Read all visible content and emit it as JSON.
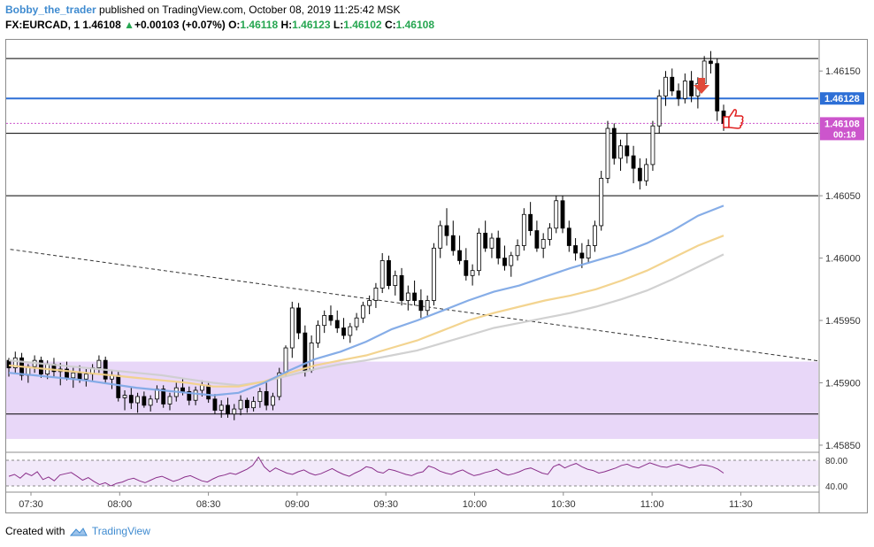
{
  "header": {
    "author": "Bobby_the_trader",
    "published_text": "published on TradingView.com, October 08, 2019 11:25:42 MSK",
    "symbol": "FX:EURCAD, 1",
    "last": "1.46108",
    "change_arrow": "▲",
    "change": "+0.00103 (+0.07%)",
    "o_label": "O:",
    "o_value": "1.46118",
    "h_label": "H:",
    "h_value": "1.46123",
    "l_label": "L:",
    "l_value": "1.46102",
    "c_label": "C:",
    "c_value": "1.46108"
  },
  "footer": {
    "created_with": "Created with",
    "brand": "TradingView"
  },
  "colors": {
    "up": "#000000",
    "down": "#000000",
    "body_up": "#ffffff",
    "body_down": "#000000",
    "ma_fast": "#7fa9e6",
    "ma_mid": "#f2d28a",
    "ma_slow": "#cfcfcf",
    "support_zone": "#e6d3f7",
    "level_line": "#2d6fd6",
    "price_tag": "#cc55cc",
    "rsi_line": "#8a2f8a",
    "rsi_band": "#f2e9fa",
    "trend_line": "#333333",
    "arrow": "#e04a3a"
  },
  "chart_data": {
    "type": "candlestick",
    "title": "",
    "symbol": "FX:EURCAD",
    "timeframe": "1",
    "x_tick_labels": [
      "07:30",
      "08:00",
      "08:30",
      "09:00",
      "09:30",
      "10:00",
      "10:30",
      "11:00",
      "11:30"
    ],
    "y_tick_labels": [
      "1.46150",
      "1.46100",
      "1.46050",
      "1.46000",
      "1.45950",
      "1.45900",
      "1.45850"
    ],
    "ylim": [
      1.45845,
      1.46175
    ],
    "price_labels": {
      "level": "1.46128",
      "last": "1.46108",
      "countdown": "00:18"
    },
    "horizontal_levels": [
      1.4616,
      1.46128,
      1.46108,
      1.461,
      1.4605,
      1.45875
    ],
    "support_zone": [
      1.45855,
      1.45917
    ],
    "trend_line": {
      "start": [
        "07:23",
        1.46007
      ],
      "end": [
        "11:58",
        1.45917
      ]
    },
    "rsi": {
      "levels": [
        80,
        40
      ],
      "level_labels": [
        "80.00",
        "40.00"
      ],
      "values": [
        55,
        58,
        52,
        60,
        56,
        62,
        50,
        54,
        48,
        57,
        59,
        61,
        55,
        49,
        53,
        47,
        42,
        45,
        40,
        44,
        46,
        50,
        52,
        48,
        45,
        49,
        53,
        55,
        51,
        47,
        50,
        54,
        56,
        52,
        48,
        46,
        51,
        55,
        57,
        60,
        58,
        62,
        66,
        72,
        85,
        70,
        62,
        68,
        64,
        60,
        58,
        62,
        65,
        60,
        57,
        59,
        63,
        67,
        62,
        58,
        55,
        60,
        64,
        70,
        68,
        62,
        60,
        66,
        64,
        61,
        58,
        56,
        60,
        62,
        71,
        68,
        63,
        60,
        58,
        62,
        65,
        60,
        56,
        58,
        61,
        63,
        66,
        60,
        57,
        59,
        62,
        66,
        68,
        64,
        60,
        58,
        70,
        74,
        68,
        72,
        75,
        70,
        66,
        64,
        60,
        62,
        65,
        68,
        72,
        74,
        70,
        68,
        72,
        76,
        73,
        70,
        69,
        72,
        74,
        71,
        68,
        70,
        73,
        72,
        70,
        66,
        60
      ]
    },
    "candles_ohlc": [
      [
        1.45918,
        1.4592,
        1.45905,
        1.45912
      ],
      [
        1.45912,
        1.45925,
        1.45908,
        1.4592
      ],
      [
        1.4592,
        1.45924,
        1.45902,
        1.45906
      ],
      [
        1.45906,
        1.45915,
        1.459,
        1.45913
      ],
      [
        1.45913,
        1.45922,
        1.45908,
        1.45918
      ],
      [
        1.45918,
        1.45921,
        1.45904,
        1.45907
      ],
      [
        1.45907,
        1.45918,
        1.45903,
        1.45915
      ],
      [
        1.45915,
        1.4592,
        1.45905,
        1.45909
      ],
      [
        1.45909,
        1.45916,
        1.45898,
        1.45911
      ],
      [
        1.45911,
        1.45917,
        1.45902,
        1.45904
      ],
      [
        1.45904,
        1.45912,
        1.45896,
        1.45908
      ],
      [
        1.45908,
        1.45914,
        1.459,
        1.45903
      ],
      [
        1.45903,
        1.45911,
        1.45897,
        1.45907
      ],
      [
        1.45907,
        1.45915,
        1.45902,
        1.45912
      ],
      [
        1.45912,
        1.45922,
        1.45908,
        1.45918
      ],
      [
        1.45918,
        1.45921,
        1.459,
        1.45903
      ],
      [
        1.45903,
        1.4591,
        1.45895,
        1.45906
      ],
      [
        1.45906,
        1.45909,
        1.45885,
        1.45888
      ],
      [
        1.45888,
        1.45894,
        1.45878,
        1.4589
      ],
      [
        1.4589,
        1.45896,
        1.45879,
        1.45884
      ],
      [
        1.45884,
        1.45892,
        1.45876,
        1.45889
      ],
      [
        1.45889,
        1.45893,
        1.4588,
        1.45882
      ],
      [
        1.45882,
        1.4589,
        1.45877,
        1.45887
      ],
      [
        1.45887,
        1.45898,
        1.45884,
        1.45895
      ],
      [
        1.45895,
        1.45898,
        1.4588,
        1.45883
      ],
      [
        1.45883,
        1.45892,
        1.45878,
        1.45889
      ],
      [
        1.45889,
        1.459,
        1.45885,
        1.45896
      ],
      [
        1.45896,
        1.45903,
        1.4589,
        1.45893
      ],
      [
        1.45893,
        1.45897,
        1.45882,
        1.45886
      ],
      [
        1.45886,
        1.45897,
        1.45882,
        1.45894
      ],
      [
        1.45894,
        1.45902,
        1.45889,
        1.45898
      ],
      [
        1.45898,
        1.45901,
        1.45884,
        1.45887
      ],
      [
        1.45887,
        1.45891,
        1.45875,
        1.45878
      ],
      [
        1.45878,
        1.45886,
        1.45872,
        1.45882
      ],
      [
        1.45882,
        1.45888,
        1.45872,
        1.45875
      ],
      [
        1.45875,
        1.45883,
        1.4587,
        1.45879
      ],
      [
        1.45879,
        1.4589,
        1.45874,
        1.45886
      ],
      [
        1.45886,
        1.45888,
        1.45876,
        1.4588
      ],
      [
        1.4588,
        1.45889,
        1.45877,
        1.45885
      ],
      [
        1.45885,
        1.45896,
        1.4588,
        1.45893
      ],
      [
        1.45893,
        1.459,
        1.45878,
        1.45882
      ],
      [
        1.45882,
        1.45892,
        1.45878,
        1.45889
      ],
      [
        1.45889,
        1.45912,
        1.45886,
        1.45908
      ],
      [
        1.45908,
        1.4593,
        1.45905,
        1.45928
      ],
      [
        1.45928,
        1.45965,
        1.4592,
        1.4596
      ],
      [
        1.4596,
        1.45964,
        1.45935,
        1.4594
      ],
      [
        1.4594,
        1.45946,
        1.45905,
        1.4591
      ],
      [
        1.4591,
        1.45938,
        1.45908,
        1.45932
      ],
      [
        1.45932,
        1.4595,
        1.45928,
        1.45946
      ],
      [
        1.45946,
        1.45958,
        1.4594,
        1.45954
      ],
      [
        1.45954,
        1.45962,
        1.45946,
        1.4595
      ],
      [
        1.4595,
        1.45958,
        1.4594,
        1.45944
      ],
      [
        1.45944,
        1.45952,
        1.45935,
        1.45938
      ],
      [
        1.45938,
        1.45948,
        1.45932,
        1.45945
      ],
      [
        1.45945,
        1.45956,
        1.45942,
        1.45952
      ],
      [
        1.45952,
        1.45965,
        1.45948,
        1.45962
      ],
      [
        1.45962,
        1.4597,
        1.45955,
        1.45966
      ],
      [
        1.45966,
        1.4598,
        1.4596,
        1.45976
      ],
      [
        1.45976,
        1.46004,
        1.45972,
        1.45998
      ],
      [
        1.45998,
        1.46002,
        1.45975,
        1.45978
      ],
      [
        1.45978,
        1.4599,
        1.4597,
        1.45986
      ],
      [
        1.45986,
        1.45992,
        1.45962,
        1.45966
      ],
      [
        1.45966,
        1.45978,
        1.45958,
        1.45972
      ],
      [
        1.45972,
        1.45982,
        1.45962,
        1.45966
      ],
      [
        1.45966,
        1.45975,
        1.45952,
        1.45958
      ],
      [
        1.45958,
        1.4597,
        1.45954,
        1.45966
      ],
      [
        1.45966,
        1.46012,
        1.45962,
        1.46008
      ],
      [
        1.46008,
        1.4603,
        1.46,
        1.46026
      ],
      [
        1.46026,
        1.4604,
        1.4601,
        1.46018
      ],
      [
        1.46018,
        1.4603,
        1.46002,
        1.46006
      ],
      [
        1.46006,
        1.46018,
        1.45995,
        1.45998
      ],
      [
        1.45998,
        1.46008,
        1.45982,
        1.45986
      ],
      [
        1.45986,
        1.45995,
        1.45978,
        1.4599
      ],
      [
        1.4599,
        1.46024,
        1.45986,
        1.4602
      ],
      [
        1.4602,
        1.4603,
        1.46005,
        1.46008
      ],
      [
        1.46008,
        1.4602,
        1.46,
        1.46016
      ],
      [
        1.46016,
        1.46022,
        1.45995,
        1.46
      ],
      [
        1.46,
        1.4601,
        1.4599,
        1.45994
      ],
      [
        1.45994,
        1.46005,
        1.45985,
        1.46002
      ],
      [
        1.46002,
        1.46015,
        1.45998,
        1.4601
      ],
      [
        1.4601,
        1.4604,
        1.46006,
        1.46035
      ],
      [
        1.46035,
        1.46045,
        1.46018,
        1.46022
      ],
      [
        1.46022,
        1.4603,
        1.46005,
        1.46008
      ],
      [
        1.46008,
        1.4602,
        1.46,
        1.46015
      ],
      [
        1.46015,
        1.46028,
        1.4601,
        1.46024
      ],
      [
        1.46024,
        1.4605,
        1.4602,
        1.46046
      ],
      [
        1.46046,
        1.4605,
        1.4602,
        1.46024
      ],
      [
        1.46024,
        1.4603,
        1.46005,
        1.4601
      ],
      [
        1.4601,
        1.46016,
        1.45998,
        1.46004
      ],
      [
        1.46004,
        1.46012,
        1.45992,
        1.46
      ],
      [
        1.46,
        1.46015,
        1.45996,
        1.4601
      ],
      [
        1.4601,
        1.4603,
        1.46005,
        1.46026
      ],
      [
        1.46026,
        1.4607,
        1.46022,
        1.46064
      ],
      [
        1.46064,
        1.4611,
        1.4606,
        1.46104
      ],
      [
        1.46104,
        1.46108,
        1.46075,
        1.4608
      ],
      [
        1.4608,
        1.46095,
        1.4607,
        1.4609
      ],
      [
        1.4609,
        1.461,
        1.46076,
        1.46082
      ],
      [
        1.46082,
        1.4609,
        1.4606,
        1.46072
      ],
      [
        1.46072,
        1.4608,
        1.46055,
        1.46062
      ],
      [
        1.46062,
        1.4608,
        1.46058,
        1.46075
      ],
      [
        1.46075,
        1.4611,
        1.4607,
        1.46106
      ],
      [
        1.46106,
        1.46135,
        1.461,
        1.4613
      ],
      [
        1.4613,
        1.4615,
        1.46122,
        1.46145
      ],
      [
        1.46145,
        1.46152,
        1.4613,
        1.46134
      ],
      [
        1.46134,
        1.4614,
        1.46122,
        1.46128
      ],
      [
        1.46128,
        1.46148,
        1.46124,
        1.46142
      ],
      [
        1.46142,
        1.4615,
        1.46125,
        1.4613
      ],
      [
        1.4613,
        1.46145,
        1.4612,
        1.4614
      ],
      [
        1.4614,
        1.46162,
        1.46135,
        1.46158
      ],
      [
        1.46158,
        1.46166,
        1.46148,
        1.46156
      ],
      [
        1.46156,
        1.4616,
        1.4611,
        1.46118
      ],
      [
        1.46118,
        1.46123,
        1.46102,
        1.46108
      ]
    ],
    "ma_fast": [
      1.45908,
      1.45906,
      1.45904,
      1.45902,
      1.45899,
      1.45896,
      1.45894,
      1.45892,
      1.4589,
      1.45892,
      1.459,
      1.4591,
      1.45919,
      1.45925,
      1.45933,
      1.45943,
      1.4595,
      1.45958,
      1.45966,
      1.45973,
      1.45978,
      1.45985,
      1.45992,
      1.45998,
      1.46004,
      1.46012,
      1.46022,
      1.46034,
      1.46042
    ],
    "ma_mid": [
      1.45914,
      1.45912,
      1.4591,
      1.45908,
      1.45906,
      1.45904,
      1.45902,
      1.459,
      1.45897,
      1.45897,
      1.45901,
      1.45908,
      1.45914,
      1.45918,
      1.45922,
      1.45928,
      1.45934,
      1.45942,
      1.4595,
      1.45956,
      1.45961,
      1.45966,
      1.4597,
      1.45975,
      1.45982,
      1.4599,
      1.46,
      1.4601,
      1.46018
    ],
    "ma_slow": [
      1.45918,
      1.45916,
      1.45914,
      1.45912,
      1.4591,
      1.45908,
      1.45906,
      1.45903,
      1.459,
      1.45898,
      1.45901,
      1.45906,
      1.45911,
      1.45915,
      1.45918,
      1.45922,
      1.45926,
      1.45932,
      1.45938,
      1.45944,
      1.45948,
      1.45952,
      1.45956,
      1.45961,
      1.45967,
      1.45974,
      1.45983,
      1.45993,
      1.46003
    ]
  }
}
